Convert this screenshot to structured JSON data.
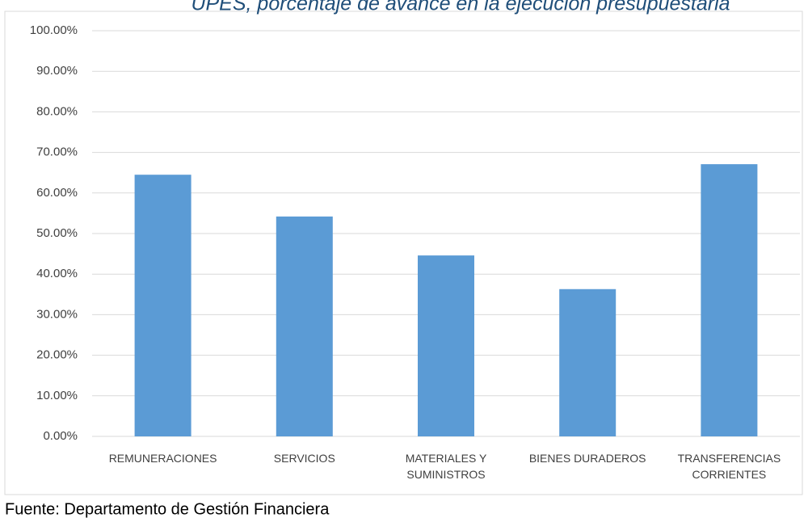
{
  "chart_data": {
    "type": "bar",
    "title": "UPES, porcentaje de avance en la ejecución presupuestaria",
    "categories": [
      "REMUNERACIONES",
      "SERVICIOS",
      "MATERIALES Y SUMINISTROS",
      "BIENES DURADEROS",
      "TRANSFERENCIAS CORRIENTES"
    ],
    "values": [
      64.5,
      54.2,
      44.6,
      36.3,
      67.1
    ],
    "color": "#5b9bd5",
    "ylim": [
      0,
      100
    ],
    "yticks": [
      {
        "value": 0,
        "label": "0.00%"
      },
      {
        "value": 10,
        "label": "10.00%"
      },
      {
        "value": 20,
        "label": "20.00%"
      },
      {
        "value": 30,
        "label": "30.00%"
      },
      {
        "value": 40,
        "label": "40.00%"
      },
      {
        "value": 50,
        "label": "50.00%"
      },
      {
        "value": 60,
        "label": "60.00%"
      },
      {
        "value": 70,
        "label": "70.00%"
      },
      {
        "value": 80,
        "label": "80.00%"
      },
      {
        "value": 90,
        "label": "90.00%"
      },
      {
        "value": 100,
        "label": "100.00%"
      }
    ],
    "grid": true,
    "source": "Fuente: Departamento de Gestión Financiera"
  }
}
